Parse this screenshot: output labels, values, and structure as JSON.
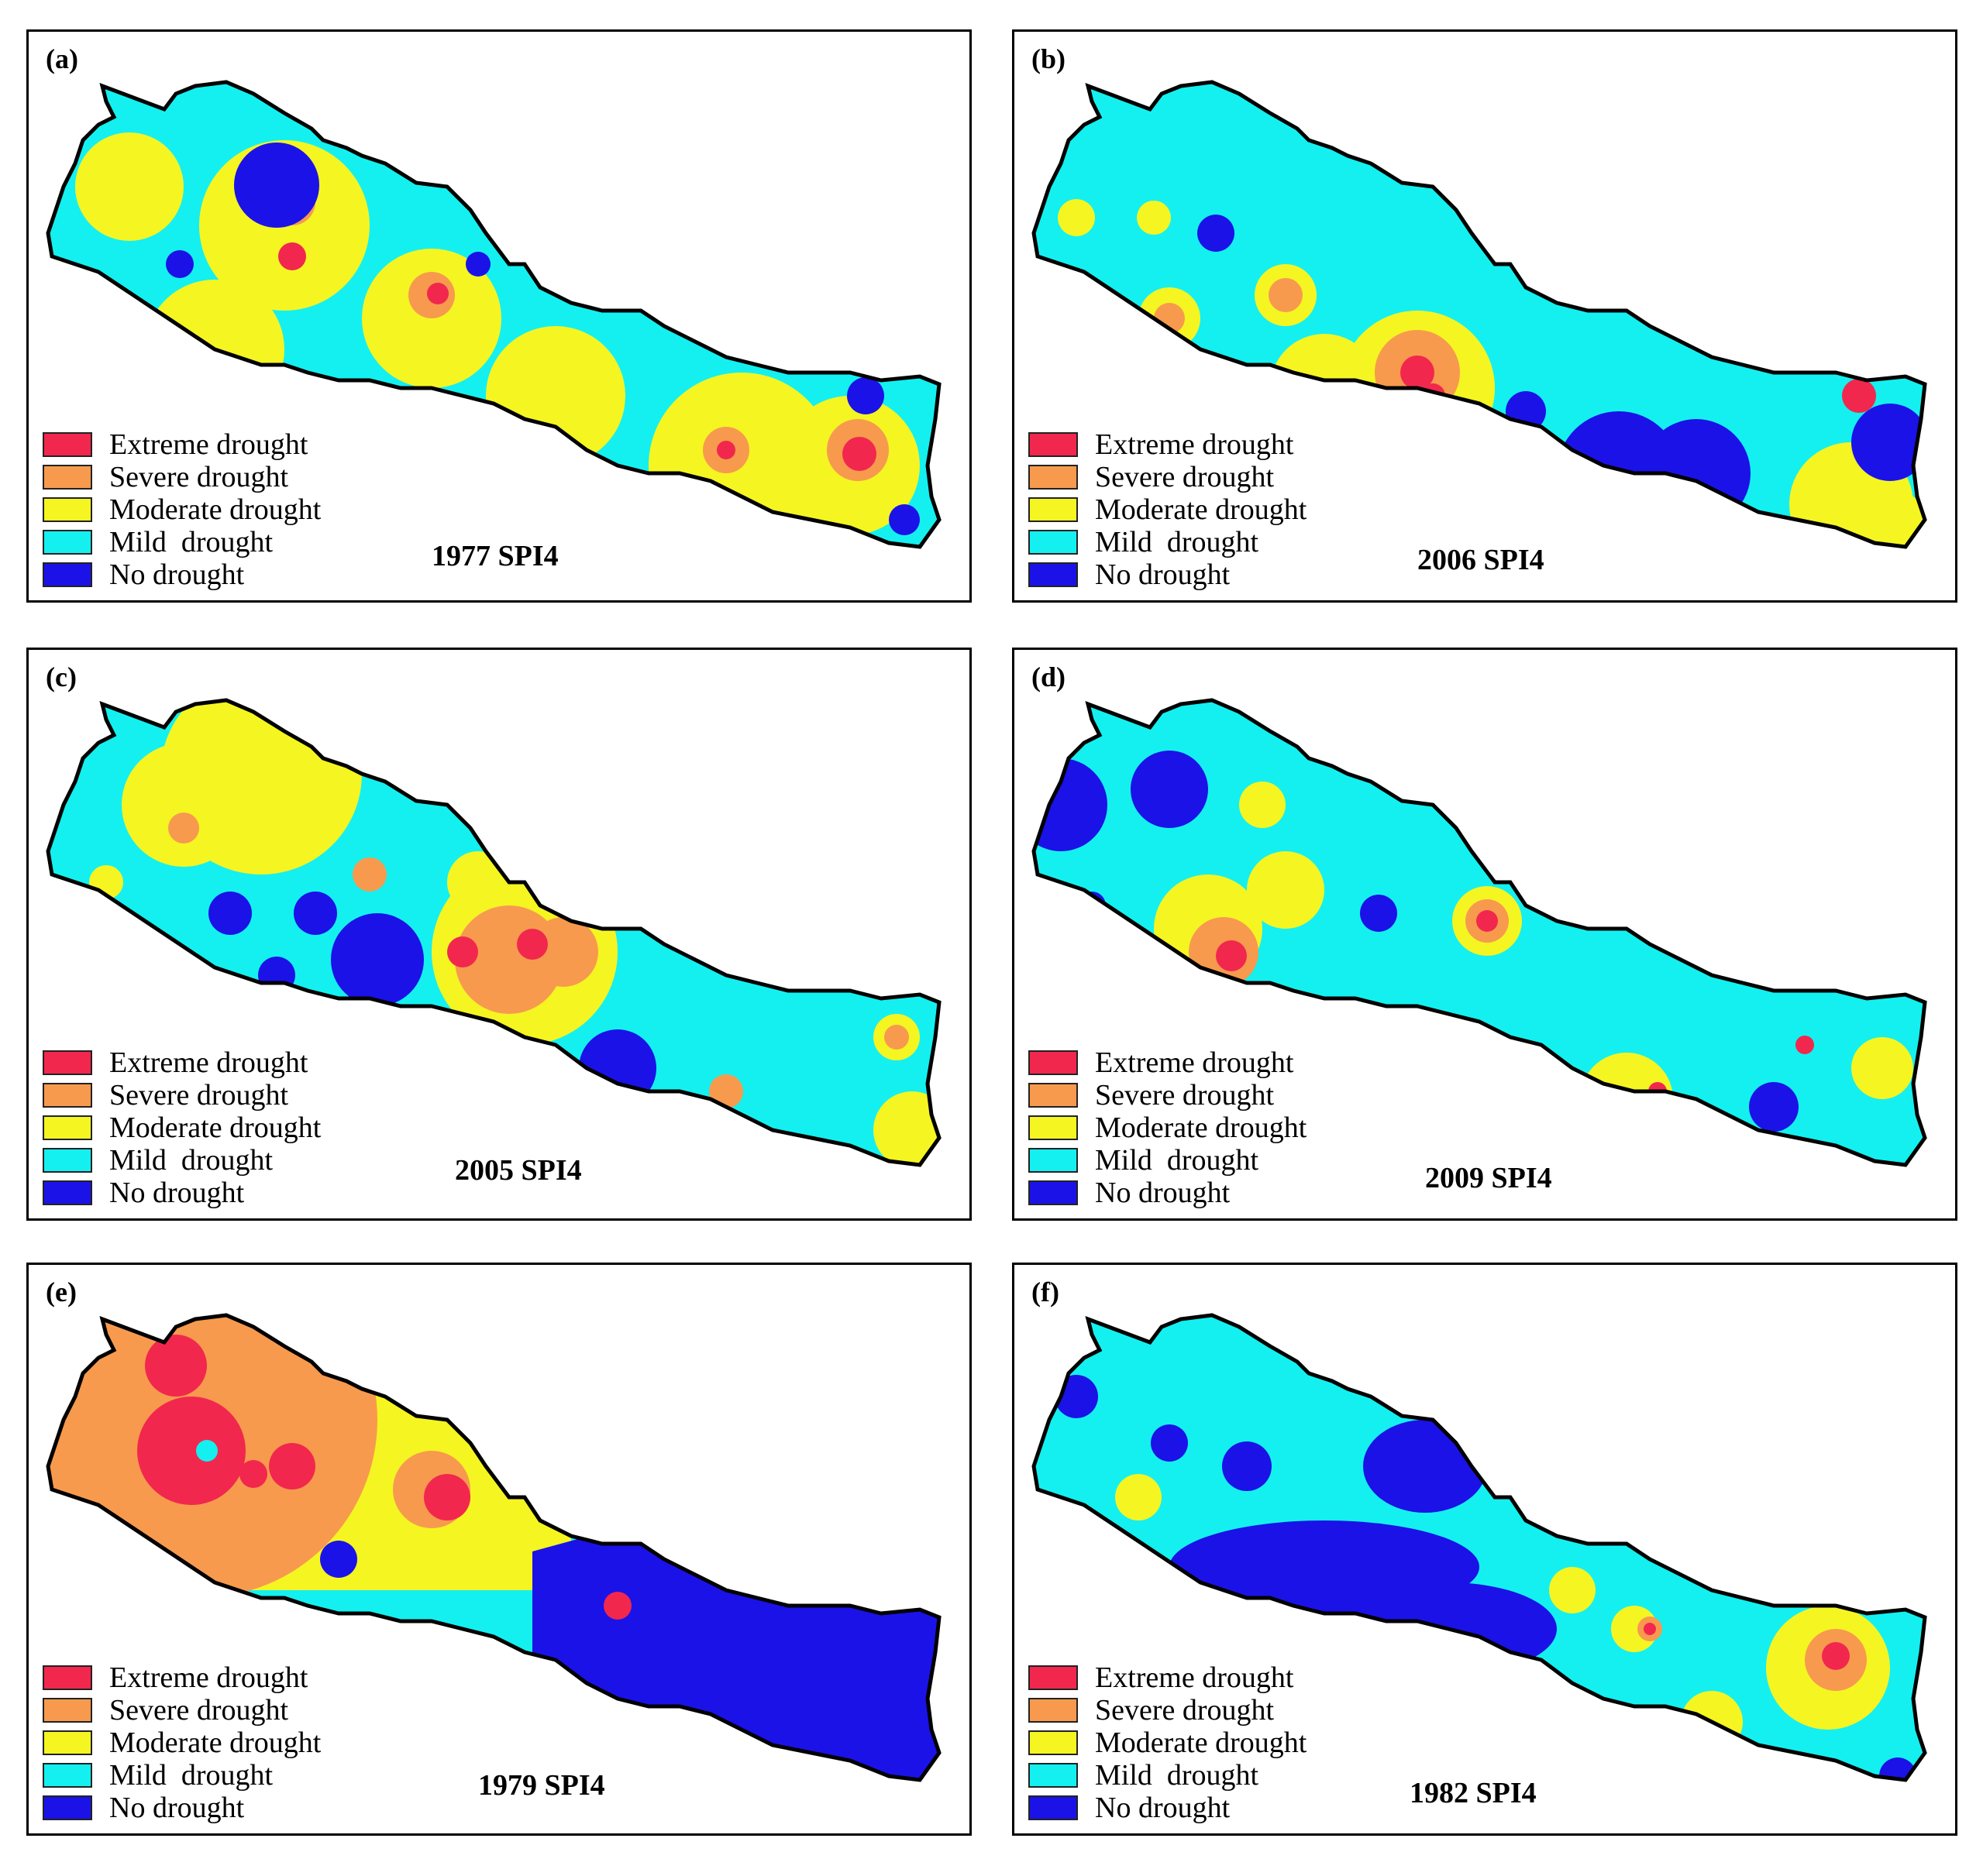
{
  "legend_colors": {
    "extreme": "#f2274d",
    "severe": "#f79a4e",
    "moderate": "#f5f522",
    "mild": "#14f0f0",
    "none": "#1b12e8"
  },
  "legend_labels": {
    "extreme": "Extreme drought",
    "severe": "Severe drought",
    "moderate": "Moderate drought",
    "mild": "Mild  drought",
    "none": "No drought"
  },
  "panels": [
    {
      "label": "(a)",
      "title": "1977 SPI4",
      "base": "mild"
    },
    {
      "label": "(b)",
      "title": "2006 SPI4",
      "base": "mild"
    },
    {
      "label": "(c)",
      "title": "2005 SPI4",
      "base": "mild"
    },
    {
      "label": "(d)",
      "title": "2009 SPI4",
      "base": "mild"
    },
    {
      "label": "(e)",
      "title": "1979 SPI4",
      "base": "mild"
    },
    {
      "label": "(f)",
      "title": "1982 SPI4",
      "base": "mild"
    }
  ]
}
